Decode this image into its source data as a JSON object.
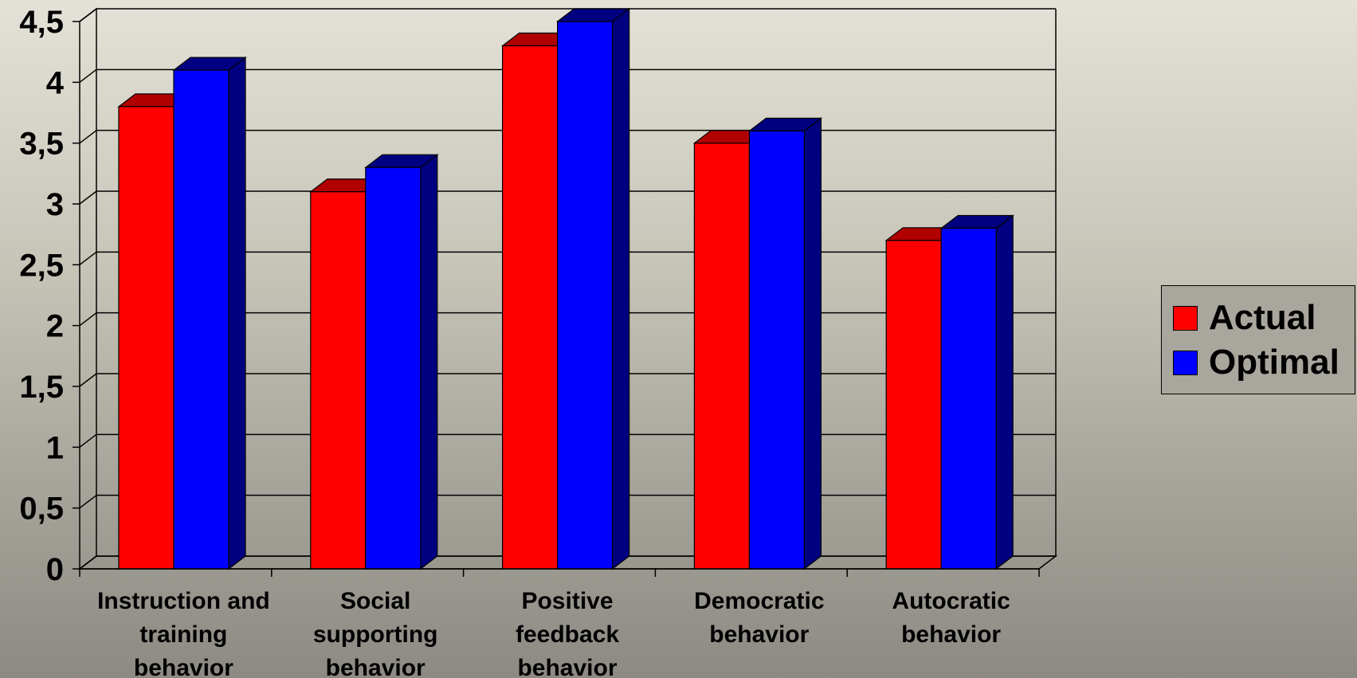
{
  "chart_data": {
    "type": "bar",
    "title": "",
    "xlabel": "",
    "ylabel": "",
    "categories": [
      [
        "Instruction and",
        "training",
        "behavior"
      ],
      [
        "Social",
        "supporting",
        "behavior"
      ],
      [
        "Positive",
        "feedback",
        "behavior"
      ],
      [
        "Democratic",
        "behavior"
      ],
      [
        "Autocratic",
        "behavior"
      ]
    ],
    "series": [
      {
        "name": "Actual",
        "values": [
          3.8,
          3.1,
          4.3,
          3.5,
          2.7
        ],
        "color": "#ff0000",
        "side_color": "#b00000"
      },
      {
        "name": "Optimal",
        "values": [
          4.1,
          3.3,
          4.5,
          3.6,
          2.8
        ],
        "color": "#0000ff",
        "side_color": "#000080"
      }
    ],
    "ylim": [
      0,
      4.5
    ],
    "yticks": [
      "0",
      "0,5",
      "1",
      "1,5",
      "2",
      "2,5",
      "3",
      "3,5",
      "4",
      "4,5"
    ],
    "grid": true,
    "legend_position": "right",
    "background": "gradient-gray"
  }
}
